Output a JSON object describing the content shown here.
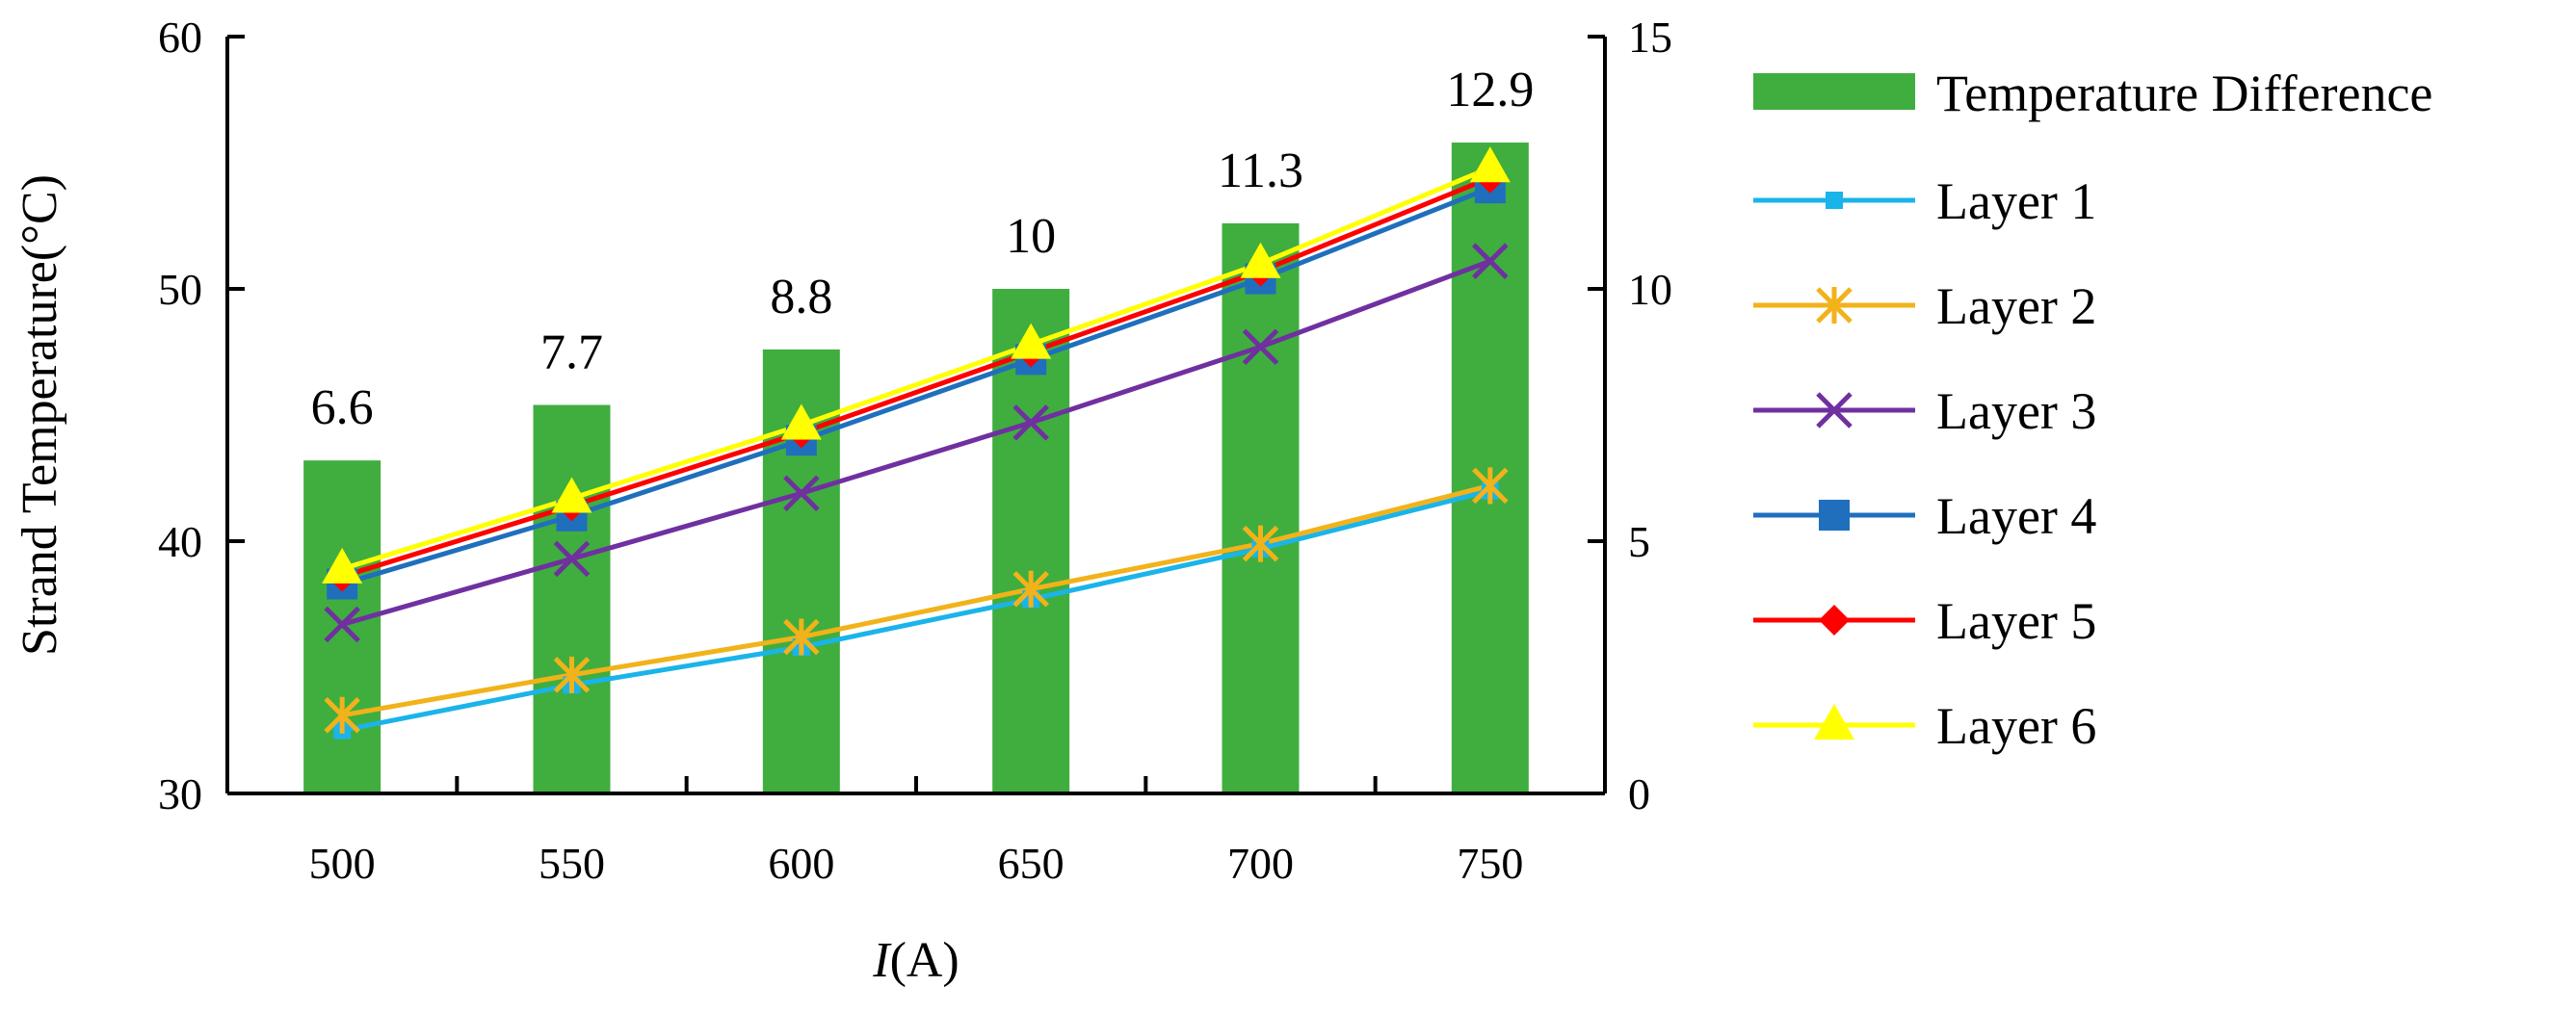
{
  "chart_data": {
    "type": "bar+line",
    "categories": [
      "500",
      "550",
      "600",
      "650",
      "700",
      "750"
    ],
    "xlabel_italic": "I",
    "xlabel_rest": "(A)",
    "ylabel": "Strand Temperature(°C)",
    "ylim": [
      30,
      60
    ],
    "yticks": [
      "30",
      "40",
      "50",
      "60"
    ],
    "y2lim": [
      0,
      15
    ],
    "y2ticks": [
      "0",
      "5",
      "10",
      "15"
    ],
    "bars": {
      "name": "Temperature Difference",
      "axis": "right",
      "color": "#3fae3f",
      "values": [
        6.6,
        7.7,
        8.8,
        10,
        11.3,
        12.9
      ],
      "labels": [
        "6.6",
        "7.7",
        "8.8",
        "10",
        "11.3",
        "12.9"
      ]
    },
    "series": [
      {
        "name": "Layer 1",
        "color": "#1ab4ea",
        "marker": "small-square",
        "values": [
          32.5,
          34.3,
          35.8,
          37.7,
          39.7,
          42.0
        ]
      },
      {
        "name": "Layer 2",
        "color": "#f2b21a",
        "marker": "asterisk",
        "values": [
          33.1,
          34.7,
          36.2,
          38.1,
          39.9,
          42.2
        ]
      },
      {
        "name": "Layer 3",
        "color": "#7030a0",
        "marker": "x",
        "values": [
          36.7,
          39.3,
          41.9,
          44.7,
          47.7,
          51.1
        ]
      },
      {
        "name": "Layer 4",
        "color": "#1f6fbd",
        "marker": "square",
        "values": [
          38.3,
          41.0,
          44.0,
          47.2,
          50.4,
          54.0
        ]
      },
      {
        "name": "Layer 5",
        "color": "#ff0000",
        "marker": "diamond",
        "values": [
          38.6,
          41.4,
          44.3,
          47.5,
          50.7,
          54.4
        ]
      },
      {
        "name": "Layer 6",
        "color": "#ffff00",
        "marker": "triangle",
        "values": [
          38.9,
          41.7,
          44.6,
          47.8,
          51.0,
          54.8
        ]
      }
    ],
    "legend_position": "right"
  }
}
